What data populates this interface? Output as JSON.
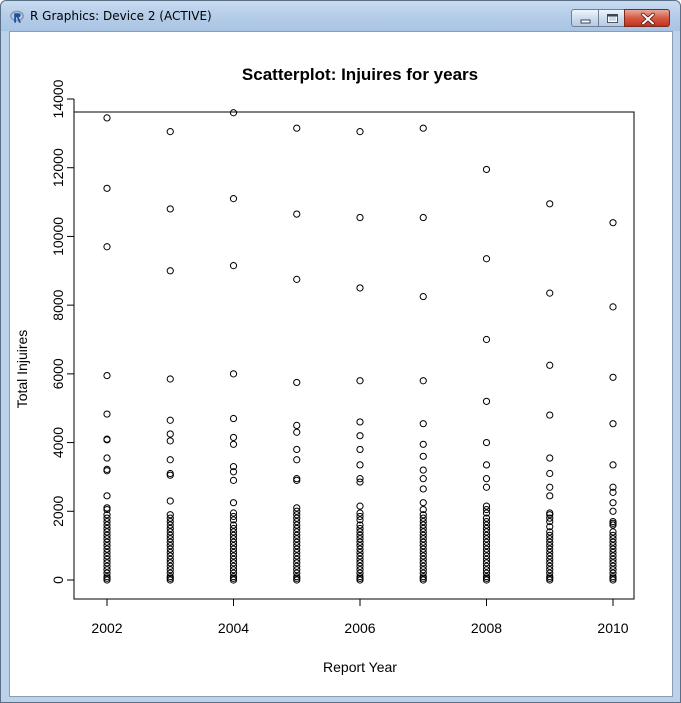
{
  "window": {
    "title": "R Graphics: Device 2 (ACTIVE)",
    "icon": "r-logo-icon",
    "controls": [
      "minimize-icon",
      "maximize-icon",
      "close-icon"
    ]
  },
  "chart_data": {
    "type": "scatter",
    "title": "Scatterplot: Injuires for years",
    "xlabel": "Report Year",
    "ylabel": "Total Injuires",
    "xlim": [
      2002,
      2010
    ],
    "ylim": [
      0,
      14000
    ],
    "x_ticks": [
      2002,
      2004,
      2006,
      2008,
      2010
    ],
    "y_ticks": [
      0,
      2000,
      4000,
      6000,
      8000,
      10000,
      12000,
      14000
    ],
    "marker": "open-circle",
    "series": [
      {
        "x": 2002,
        "y": [
          13450,
          11400,
          9700,
          5950,
          4830,
          4100,
          4080,
          3550,
          3220,
          3180,
          2450,
          2100,
          2050,
          1900,
          1800,
          1700,
          1600,
          1500,
          1400,
          1300,
          1200,
          1100,
          1000,
          900,
          800,
          700,
          600,
          500,
          400,
          300,
          200,
          100,
          50,
          0
        ]
      },
      {
        "x": 2003,
        "y": [
          13050,
          10800,
          9000,
          5850,
          4650,
          4250,
          4050,
          3500,
          3100,
          3050,
          2300,
          1900,
          1800,
          1700,
          1600,
          1500,
          1400,
          1300,
          1200,
          1100,
          1000,
          900,
          800,
          700,
          600,
          500,
          400,
          300,
          200,
          100,
          50,
          0
        ]
      },
      {
        "x": 2004,
        "y": [
          13600,
          11100,
          9150,
          6000,
          4700,
          4150,
          3950,
          3300,
          3150,
          2900,
          2250,
          1950,
          1850,
          1750,
          1600,
          1500,
          1400,
          1300,
          1200,
          1100,
          1000,
          900,
          800,
          700,
          600,
          500,
          400,
          300,
          200,
          100,
          50,
          0
        ]
      },
      {
        "x": 2005,
        "y": [
          13150,
          10650,
          8750,
          5750,
          4500,
          4300,
          3800,
          3500,
          2950,
          2900,
          2100,
          2000,
          1900,
          1800,
          1700,
          1600,
          1500,
          1400,
          1300,
          1200,
          1100,
          1000,
          900,
          800,
          700,
          600,
          500,
          400,
          300,
          200,
          100,
          50,
          0
        ]
      },
      {
        "x": 2006,
        "y": [
          13050,
          10550,
          8500,
          5800,
          4600,
          4200,
          3800,
          3350,
          2950,
          2850,
          2150,
          1950,
          1850,
          1750,
          1600,
          1500,
          1400,
          1300,
          1200,
          1100,
          1000,
          900,
          800,
          700,
          600,
          500,
          400,
          300,
          200,
          100,
          50,
          0
        ]
      },
      {
        "x": 2007,
        "y": [
          13150,
          10550,
          8250,
          5800,
          4550,
          3950,
          3600,
          3200,
          2950,
          2650,
          2250,
          2050,
          1900,
          1800,
          1700,
          1600,
          1500,
          1400,
          1300,
          1200,
          1100,
          1000,
          900,
          800,
          700,
          600,
          500,
          400,
          300,
          200,
          100,
          50,
          0
        ]
      },
      {
        "x": 2008,
        "y": [
          11950,
          9350,
          7000,
          5200,
          4000,
          3350,
          2950,
          2700,
          2150,
          2050,
          1950,
          1800,
          1700,
          1600,
          1500,
          1400,
          1300,
          1200,
          1100,
          1000,
          900,
          800,
          700,
          600,
          500,
          400,
          300,
          200,
          100,
          50,
          0
        ]
      },
      {
        "x": 2009,
        "y": [
          10950,
          8350,
          6250,
          4800,
          3550,
          3100,
          2700,
          2450,
          1950,
          1900,
          1800,
          1700,
          1550,
          1400,
          1300,
          1200,
          1100,
          1000,
          900,
          800,
          700,
          600,
          500,
          400,
          300,
          200,
          100,
          50,
          0
        ]
      },
      {
        "x": 2010,
        "y": [
          10400,
          7950,
          5900,
          4550,
          3350,
          2700,
          2550,
          2250,
          2000,
          1700,
          1650,
          1600,
          1400,
          1300,
          1200,
          1100,
          1000,
          900,
          800,
          700,
          600,
          500,
          400,
          300,
          200,
          100,
          50,
          0
        ]
      }
    ]
  }
}
